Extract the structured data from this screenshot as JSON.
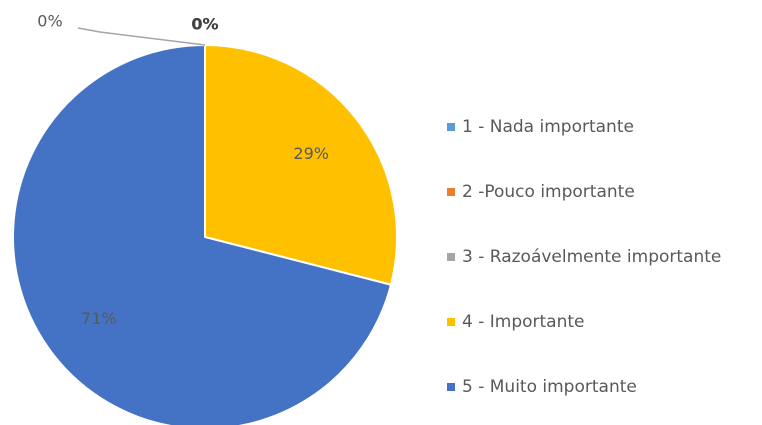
{
  "chart_data": {
    "type": "pie",
    "categories": [
      "1 - Nada importante",
      "2 -Pouco importante",
      "3 - Razoávelmente importante",
      "4 - Importante",
      "5 - Muito importante"
    ],
    "values": [
      0,
      0,
      0,
      29,
      71
    ],
    "value_labels": [
      "0%",
      "0%",
      "0%",
      "29%",
      "71%"
    ],
    "colors": [
      "#5b9bd5",
      "#ed7d31",
      "#a5a5a5",
      "#ffc000",
      "#4472c4"
    ],
    "legend": "right"
  }
}
